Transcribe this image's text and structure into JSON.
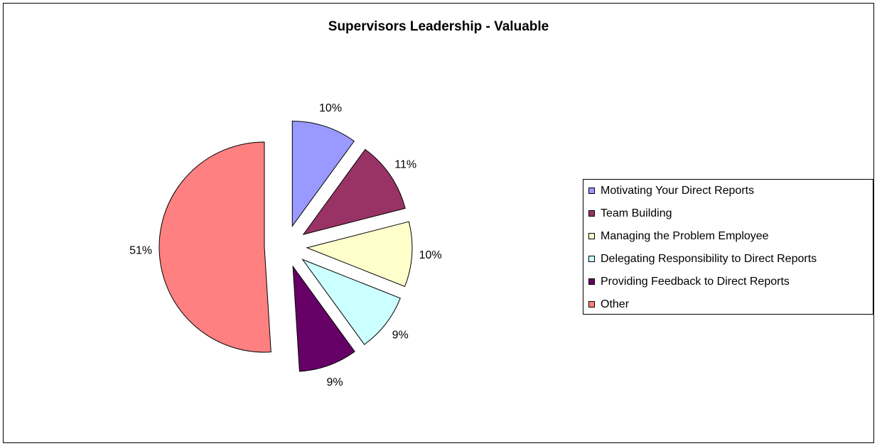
{
  "chart_data": {
    "type": "pie",
    "title": "Supervisors Leadership - Valuable",
    "categories": [
      "Motivating Your Direct Reports",
      "Team Building",
      "Managing the Problem Employee",
      "Delegating Responsibility to Direct Reports",
      "Providing Feedback to Direct Reports",
      "Other"
    ],
    "values": [
      10,
      11,
      10,
      9,
      9,
      51
    ],
    "value_labels": [
      "10%",
      "11%",
      "10%",
      "9%",
      "9%",
      "51%"
    ],
    "colors": [
      "#9999ff",
      "#993366",
      "#ffffcc",
      "#ccffff",
      "#660066",
      "#ff8080"
    ],
    "legend": "right"
  }
}
